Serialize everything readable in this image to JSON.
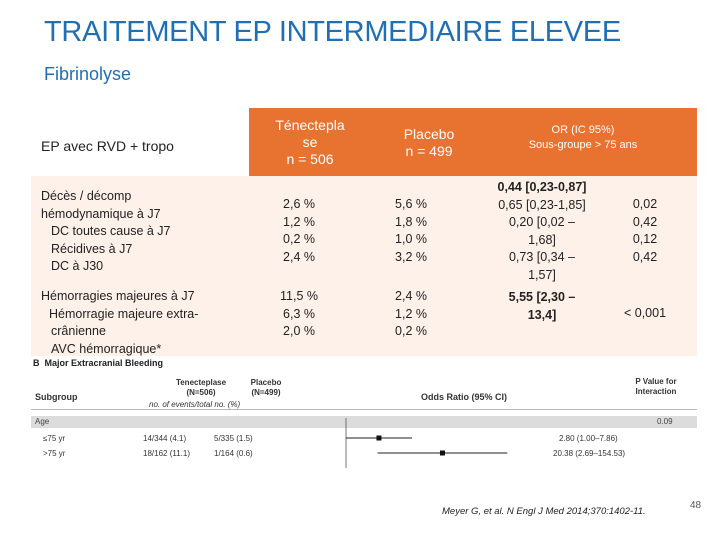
{
  "slide": {
    "title": "TRAITEMENT EP INTERMEDIAIRE ELEVEE",
    "subtitle": "Fibrinolyse",
    "citation": "Meyer G, et al. N Engl J Med 2014;370:1402-11.",
    "page_number": "48"
  },
  "table": {
    "header": {
      "col1": "EP avec RVD + tropo",
      "col2_line1": "Ténectepla",
      "col2_line2": "se",
      "col2_line3": "n = 506",
      "col3_line1": "Placebo",
      "col3_line2": "n = 499",
      "col4_line1": "OR (IC 95%)",
      "col4_line2": "Sous-groupe > 75 ans"
    },
    "row1": {
      "labels": [
        "Décès / décomp",
        "hémodynamique à J7",
        "DC toutes cause à J7",
        "Récidives à J7",
        "DC à J30"
      ],
      "tenecteplase": [
        "2,6 %",
        "1,2 %",
        "0,2 %",
        "2,4 %"
      ],
      "placebo": [
        "5,6 %",
        "1,8 %",
        "1,0 %",
        "3,2 %"
      ],
      "or": [
        "0,44 [0,23-0,87]",
        "0,65 [0,23-1,85]",
        "0,20 [0,02 –",
        "1,68]",
        "0,73 [0,34 –",
        "1,57]"
      ],
      "p": [
        "0,02",
        "0,42",
        "0,12",
        "0,42"
      ]
    },
    "row2": {
      "labels": [
        "Hémorragies majeures à J7",
        "Hémorragie majeure extra-",
        "crânienne",
        "AVC hémorragique*"
      ],
      "tenecteplase": [
        "11,5 %",
        "6,3 %",
        "2,0 %"
      ],
      "placebo": [
        "2,4 %",
        "1,2 %",
        "0,2 %"
      ],
      "or": [
        "5,55 [2,30 –",
        "13,4]"
      ],
      "p": "< 0,001"
    }
  },
  "forest": {
    "section_letter": "B",
    "section_title": "Major Extracranial Bleeding",
    "col_subgroup": "Subgroup",
    "col_tenect": "Tenecteplase",
    "col_tenect_n": "(N=506)",
    "col_placebo": "Placebo",
    "col_placebo_n": "(N=499)",
    "events_label": "no. of events/total no. (%)",
    "or_label": "Odds Ratio (95% CI)",
    "pvalue_line1": "P Value for",
    "pvalue_line2": "Interaction",
    "age_label": "Age",
    "age_p": "0.09",
    "rows": [
      {
        "subgroup": "≤75 yr",
        "tenect": "14/344 (4.1)",
        "placebo": "5/335 (1.5)",
        "or": "2.80 (1.00–7.86)",
        "or_value": 2.8,
        "ci": [
          1.0,
          7.86
        ]
      },
      {
        "subgroup": ">75 yr",
        "tenect": "18/162 (11.1)",
        "placebo": "1/164 (0.6)",
        "or": "20.38 (2.69–154.53)",
        "or_value": 20.38,
        "ci": [
          2.69,
          154.53
        ]
      }
    ]
  }
}
